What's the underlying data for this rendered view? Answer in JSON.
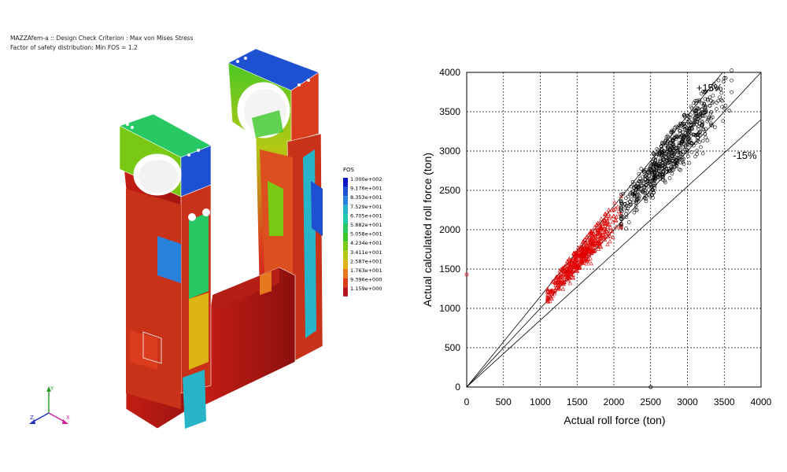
{
  "fea": {
    "header_line1": "MAZZAfem-a :: Design Check Criterion : Max von Mises Stress",
    "header_line2": "Factor of safety distribution: Min FOS = 1.2",
    "legend_title": "FOS",
    "legend_values": [
      "1.000e+002",
      "9.176e+001",
      "8.353e+001",
      "7.529e+001",
      "6.705e+001",
      "5.882e+001",
      "5.058e+001",
      "4.234e+001",
      "3.411e+001",
      "2.587e+001",
      "1.763e+001",
      "9.396e+000",
      "1.159e+000"
    ],
    "legend_colors": [
      "#0a14c8",
      "#1e50d2",
      "#2882dc",
      "#28b4c8",
      "#1ec8aa",
      "#28c864",
      "#3cc828",
      "#78c814",
      "#b4c814",
      "#dcb414",
      "#e6781e",
      "#dc3c1e",
      "#b4141e"
    ],
    "triad_labels": {
      "y": "Y",
      "x": "X",
      "z": "Z"
    }
  },
  "chart_data": {
    "type": "scatter",
    "xlabel": "Actual roll force (ton)",
    "ylabel": "Actual calculated roll force (ton)",
    "xlim": [
      0,
      4000
    ],
    "ylim": [
      0,
      4000
    ],
    "xticks": [
      "0",
      "500",
      "1000",
      "1500",
      "2000",
      "2500",
      "3000",
      "3500",
      "4000"
    ],
    "yticks": [
      "0",
      "500",
      "1000",
      "1500",
      "2000",
      "2500",
      "3000",
      "3500",
      "4000"
    ],
    "grid": true,
    "reference_lines": [
      {
        "label": "+15%",
        "slope": 1.15
      },
      {
        "label": "",
        "slope": 1.0
      },
      {
        "label": "-15%",
        "slope": 0.85
      }
    ],
    "series": [
      {
        "color": "#e00000",
        "marker": "triangle",
        "x_range": [
          1100,
          2100
        ],
        "approx_count": 500
      },
      {
        "color": "#000000",
        "marker": "circle",
        "x_range": [
          2100,
          3600
        ],
        "approx_count": 700
      }
    ],
    "outliers": [
      {
        "x": 0,
        "y": 1430,
        "color": "#e00000"
      },
      {
        "x": 2500,
        "y": 0,
        "color": "#000000"
      }
    ]
  }
}
